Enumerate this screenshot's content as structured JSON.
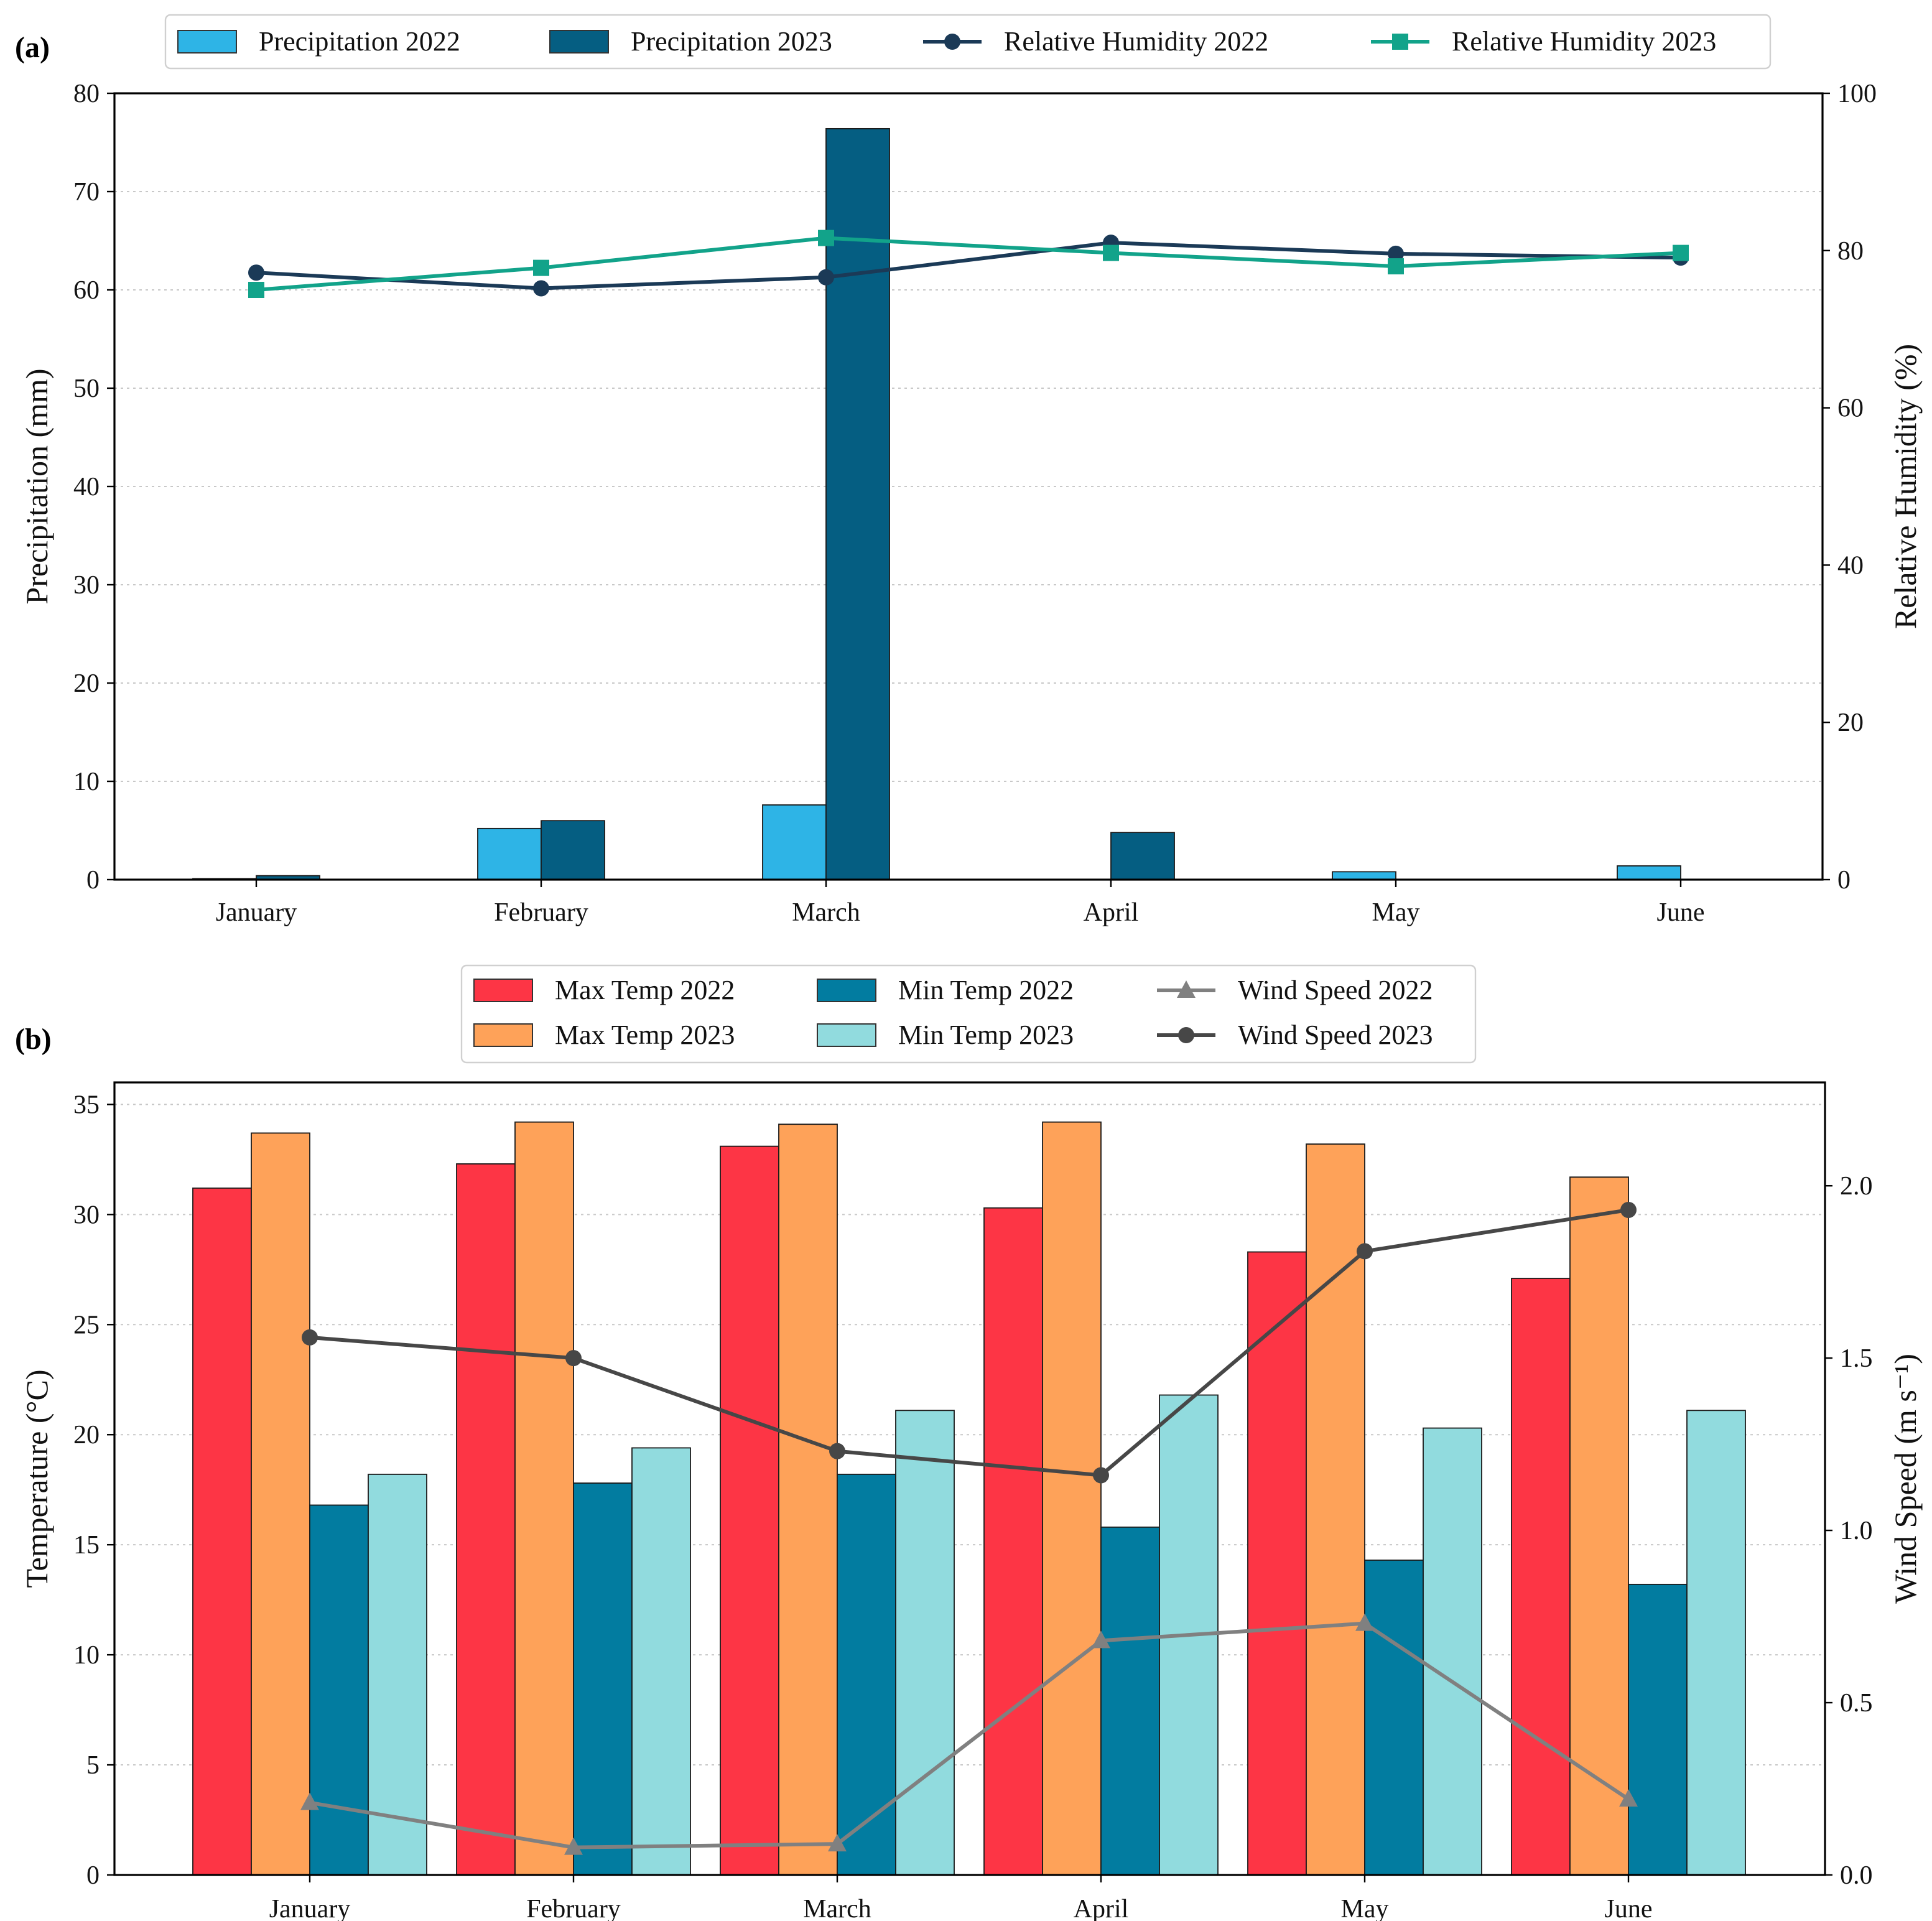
{
  "figure": {
    "panels": [
      "(a)",
      "(b)"
    ]
  },
  "chart_data": [
    {
      "id": "a",
      "type": "bar",
      "panel_label": "(a)",
      "categories": [
        "January",
        "February",
        "March",
        "April",
        "May",
        "June"
      ],
      "xlabel": "",
      "ylabel": "Precipitation (mm)",
      "ylim": [
        0,
        80
      ],
      "yticks": [
        0,
        10,
        20,
        30,
        40,
        50,
        60,
        70,
        80
      ],
      "y2label": "Relative Humidity (%)",
      "y2lim": [
        0,
        100
      ],
      "y2ticks": [
        0,
        20,
        40,
        60,
        80,
        100
      ],
      "grid": true,
      "legend_position": "top-center",
      "bar_series": [
        {
          "name": "Precipitation 2022",
          "color": "#2eb4e6",
          "values": [
            0.1,
            5.2,
            7.6,
            0.0,
            0.8,
            1.4
          ]
        },
        {
          "name": "Precipitation 2023",
          "color": "#055e82",
          "values": [
            0.4,
            6.0,
            76.4,
            4.8,
            0.0,
            0.0
          ]
        }
      ],
      "line_series": [
        {
          "name": "Relative Humidity 2022",
          "color": "#1b3a57",
          "marker": "circle",
          "axis": "right",
          "values": [
            77.2,
            75.2,
            76.6,
            81.0,
            79.6,
            79.1
          ]
        },
        {
          "name": "Relative Humidity 2023",
          "color": "#12a38a",
          "marker": "square",
          "axis": "right",
          "values": [
            75.0,
            77.8,
            81.6,
            79.7,
            78.0,
            79.7
          ]
        }
      ]
    },
    {
      "id": "b",
      "type": "bar",
      "panel_label": "(b)",
      "categories": [
        "January",
        "February",
        "March",
        "April",
        "May",
        "June"
      ],
      "xlabel": "",
      "ylabel": "Temperature (°C)",
      "ylim": [
        0,
        36
      ],
      "yticks": [
        0,
        5,
        10,
        15,
        20,
        25,
        30,
        35
      ],
      "y2label": "Wind Speed (m s⁻¹)",
      "y2lim": [
        0,
        2.3
      ],
      "y2ticks": [
        "0.0",
        "0.5",
        "1.0",
        "1.5",
        "2.0"
      ],
      "grid": true,
      "legend_position": "top-center",
      "bar_series": [
        {
          "name": "Max Temp 2022",
          "color": "#fd3545",
          "values": [
            31.2,
            32.3,
            33.1,
            30.3,
            28.3,
            27.1
          ]
        },
        {
          "name": "Max Temp 2023",
          "color": "#fea259",
          "values": [
            33.7,
            34.2,
            34.1,
            34.2,
            33.2,
            31.7
          ]
        },
        {
          "name": "Min Temp 2022",
          "color": "#027ca0",
          "values": [
            16.8,
            17.8,
            18.2,
            15.8,
            14.3,
            13.2
          ]
        },
        {
          "name": "Min Temp 2023",
          "color": "#91dbde",
          "values": [
            18.2,
            19.4,
            21.1,
            21.8,
            20.3,
            21.1
          ]
        }
      ],
      "line_series": [
        {
          "name": "Wind Speed 2022",
          "color": "#808080",
          "marker": "triangle",
          "axis": "right",
          "values": [
            0.21,
            0.08,
            0.09,
            0.68,
            0.73,
            0.22
          ]
        },
        {
          "name": "Wind Speed 2023",
          "color": "#474747",
          "marker": "circle",
          "axis": "right",
          "values": [
            1.56,
            1.5,
            1.23,
            1.16,
            1.81,
            1.93
          ]
        }
      ]
    }
  ]
}
